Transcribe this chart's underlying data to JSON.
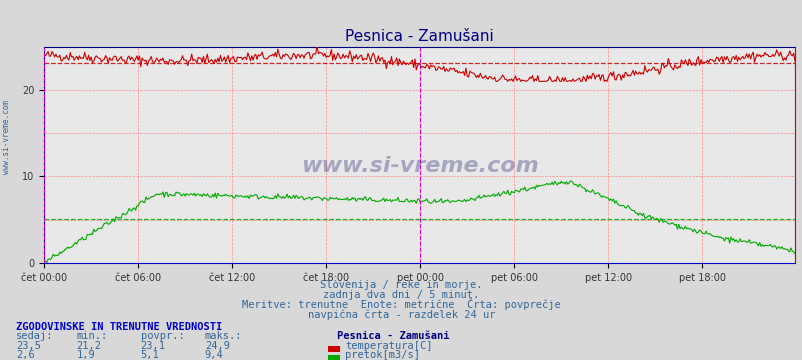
{
  "title": "Pesnica - Zamušani",
  "title_color": "#000080",
  "bg_color": "#d8d8d8",
  "plot_bg_color": "#e8e8e8",
  "x_labels": [
    "čet 00:00",
    "čet 06:00",
    "čet 12:00",
    "čet 18:00",
    "pet 00:00",
    "pet 06:00",
    "pet 12:00",
    "pet 18:00"
  ],
  "x_tick_positions": [
    0,
    72,
    144,
    216,
    288,
    360,
    432,
    504
  ],
  "y_ticks": [
    0,
    10,
    20
  ],
  "y_max": 25,
  "y_min": 0,
  "temp_avg": 23.1,
  "flow_avg": 5.1,
  "temp_color": "#cc0000",
  "flow_color": "#00aa00",
  "vline_color": "#cc00cc",
  "subtitle_lines": [
    "Slovenija / reke in morje.",
    "zadnja dva dni / 5 minut.",
    "Meritve: trenutne  Enote: metrične  Črta: povprečje",
    "navpična črta - razdelek 24 ur"
  ],
  "stats_header": "ZGODOVINSKE IN TRENUTNE VREDNOSTI",
  "stats_cols": [
    "sedaj:",
    "min.:",
    "povpr.:",
    "maks.:"
  ],
  "stats_site": "Pesnica - Zamušani",
  "stats_temp": [
    "23,5",
    "21,2",
    "23,1",
    "24,9"
  ],
  "stats_flow": [
    "2,6",
    "1,9",
    "5,1",
    "9,4"
  ],
  "legend_temp": "temperatura[C]",
  "legend_flow": "pretok[m3/s]",
  "n_points": 576,
  "watermark": "www.si-vreme.com",
  "sidebar_text": "www.si-vreme.com"
}
